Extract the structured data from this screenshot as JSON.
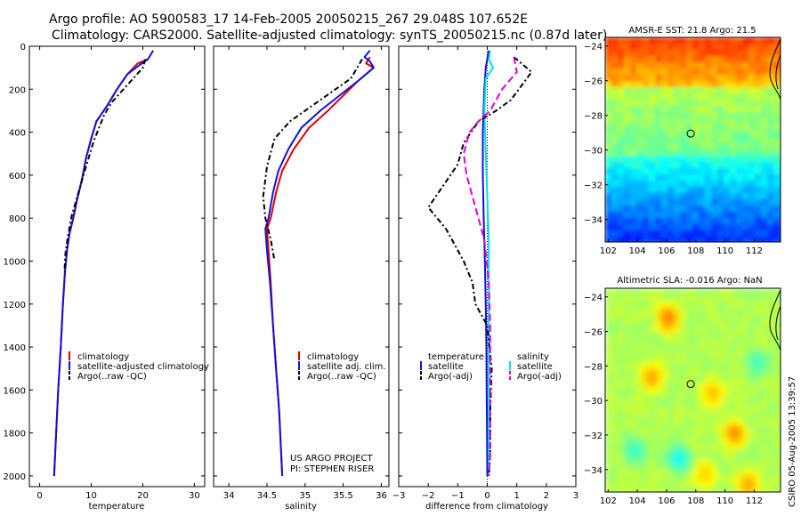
{
  "title_line1": "Argo profile: AO 5900583_17 14-Feb-2005 20050215_267 29.048S 107.652E",
  "title_line2": "Climatology: CARS2000. Satellite-adjusted climatology: synTS_20050215.nc (0.87d later)",
  "colors": {
    "climatology": "#e00000",
    "satellite": "#1010e0",
    "argo": "#000000",
    "salinity_satellite": "#00e0e0",
    "salinity_argo": "#e000e0"
  },
  "chart_data": [
    {
      "type": "line",
      "xlabel": "temperature",
      "ylim": [
        0,
        2050
      ],
      "y_reversed": true,
      "xlim": [
        -2,
        32
      ],
      "xticks": [
        0,
        10,
        20,
        30
      ],
      "yticks": [
        0,
        200,
        400,
        600,
        800,
        1000,
        1200,
        1400,
        1600,
        1800,
        2000
      ],
      "legend": [
        "climatology",
        "satellite-adjusted climatology",
        "Argo(..raw -QC)"
      ],
      "series": [
        {
          "name": "climatology",
          "color": "climatology",
          "dash": "",
          "points": [
            [
              21,
              60
            ],
            [
              19,
              80
            ],
            [
              17,
              130
            ],
            [
              15,
              200
            ],
            [
              13,
              280
            ],
            [
              11,
              350
            ],
            [
              10,
              430
            ],
            [
              9,
              520
            ],
            [
              8.2,
              620
            ],
            [
              7.2,
              720
            ],
            [
              6.5,
              800
            ],
            [
              5.8,
              870
            ],
            [
              5.3,
              950
            ],
            [
              4.9,
              1050
            ],
            [
              4.5,
              1200
            ],
            [
              4.1,
              1400
            ],
            [
              3.6,
              1600
            ],
            [
              3.2,
              1800
            ],
            [
              2.8,
              2000
            ]
          ]
        },
        {
          "name": "satellite-adjusted climatology",
          "color": "satellite",
          "dash": "",
          "points": [
            [
              22,
              20
            ],
            [
              21,
              60
            ],
            [
              19.5,
              85
            ],
            [
              17,
              130
            ],
            [
              15,
              200
            ],
            [
              13,
              280
            ],
            [
              11,
              350
            ],
            [
              10,
              430
            ],
            [
              9,
              520
            ],
            [
              8.2,
              620
            ],
            [
              7.2,
              720
            ],
            [
              6.5,
              800
            ],
            [
              5.8,
              870
            ],
            [
              5.3,
              950
            ],
            [
              4.9,
              1050
            ],
            [
              4.5,
              1200
            ],
            [
              4.1,
              1400
            ],
            [
              3.6,
              1600
            ],
            [
              3.2,
              1800
            ],
            [
              2.8,
              2000
            ]
          ]
        },
        {
          "name": "Argo(..raw -QC)",
          "color": "argo",
          "dash": "6 3 2 3",
          "points": [
            [
              20.5,
              60
            ],
            [
              20,
              100
            ],
            [
              17,
              180
            ],
            [
              14,
              260
            ],
            [
              12.5,
              320
            ],
            [
              11.5,
              380
            ],
            [
              10.5,
              440
            ],
            [
              9.5,
              520
            ],
            [
              8.5,
              600
            ],
            [
              7.3,
              700
            ],
            [
              6.2,
              790
            ],
            [
              5.5,
              880
            ],
            [
              5,
              960
            ],
            [
              4.8,
              1050
            ]
          ]
        }
      ]
    },
    {
      "type": "line",
      "xlabel": "salinity",
      "ylim": [
        0,
        2050
      ],
      "y_reversed": true,
      "xlim": [
        33.8,
        36.1
      ],
      "xticks": [
        34,
        34.5,
        35,
        35.5,
        36
      ],
      "yticks": [
        0,
        200,
        400,
        600,
        800,
        1000,
        1200,
        1400,
        1600,
        1800,
        2000
      ],
      "legend": [
        "climatology",
        "satellite adj. clim.",
        "Argo(..raw -QC)"
      ],
      "series": [
        {
          "name": "climatology",
          "color": "climatology",
          "dash": "",
          "points": [
            [
              35.85,
              50
            ],
            [
              35.8,
              80
            ],
            [
              35.9,
              100
            ],
            [
              35.7,
              160
            ],
            [
              35.5,
              230
            ],
            [
              35.3,
              300
            ],
            [
              35.05,
              380
            ],
            [
              34.85,
              480
            ],
            [
              34.7,
              580
            ],
            [
              34.62,
              680
            ],
            [
              34.55,
              800
            ],
            [
              34.5,
              850
            ],
            [
              34.52,
              950
            ],
            [
              34.55,
              1100
            ],
            [
              34.58,
              1300
            ],
            [
              34.62,
              1500
            ],
            [
              34.66,
              1700
            ],
            [
              34.68,
              1850
            ],
            [
              34.7,
              2000
            ]
          ]
        },
        {
          "name": "satellite adj. clim.",
          "color": "satellite",
          "dash": "",
          "points": [
            [
              35.85,
              20
            ],
            [
              35.78,
              50
            ],
            [
              35.85,
              70
            ],
            [
              35.9,
              100
            ],
            [
              35.7,
              160
            ],
            [
              35.45,
              230
            ],
            [
              35.2,
              300
            ],
            [
              34.95,
              380
            ],
            [
              34.78,
              480
            ],
            [
              34.65,
              580
            ],
            [
              34.58,
              680
            ],
            [
              34.52,
              800
            ],
            [
              34.48,
              850
            ],
            [
              34.5,
              950
            ],
            [
              34.54,
              1100
            ],
            [
              34.58,
              1300
            ],
            [
              34.62,
              1500
            ],
            [
              34.66,
              1700
            ],
            [
              34.68,
              1850
            ],
            [
              34.7,
              2000
            ]
          ]
        },
        {
          "name": "Argo(..raw -QC)",
          "color": "argo",
          "dash": "6 3 2 3",
          "points": [
            [
              35.75,
              60
            ],
            [
              35.6,
              150
            ],
            [
              35.2,
              250
            ],
            [
              34.8,
              350
            ],
            [
              34.6,
              430
            ],
            [
              34.5,
              560
            ],
            [
              34.45,
              700
            ],
            [
              34.48,
              800
            ],
            [
              34.55,
              900
            ],
            [
              34.6,
              1000
            ]
          ]
        }
      ]
    },
    {
      "type": "line",
      "xlabel": "difference from climatology",
      "ylim": [
        0,
        2050
      ],
      "y_reversed": true,
      "xlim": [
        -3,
        3
      ],
      "xticks": [
        -3,
        -2,
        -1,
        0,
        1,
        2,
        3
      ],
      "yticks": [
        0,
        200,
        400,
        600,
        800,
        1000,
        1200,
        1400,
        1600,
        1800,
        2000
      ],
      "legend_left_title": "temperature",
      "legend_left": [
        "satellite",
        "Argo(-adj)"
      ],
      "legend_right_title": "salinity",
      "legend_right": [
        "satellite",
        "Argo(-adj)"
      ],
      "series": [
        {
          "name": "temperature satellite",
          "color": "satellite",
          "dash": "",
          "points": [
            [
              0.05,
              20
            ],
            [
              -0.05,
              100
            ],
            [
              -0.1,
              200
            ],
            [
              -0.15,
              400
            ],
            [
              -0.15,
              600
            ],
            [
              -0.12,
              800
            ],
            [
              -0.08,
              1000
            ],
            [
              -0.05,
              1200
            ],
            [
              -0.03,
              1400
            ],
            [
              -0.02,
              1600
            ],
            [
              -0.01,
              1800
            ],
            [
              0,
              2000
            ]
          ]
        },
        {
          "name": "salinity satellite",
          "color": "salinity_satellite",
          "dash": "",
          "points": [
            [
              0.1,
              20
            ],
            [
              0.05,
              60
            ],
            [
              0.2,
              100
            ],
            [
              -0.05,
              150
            ],
            [
              -0.1,
              300
            ],
            [
              -0.05,
              500
            ],
            [
              0,
              700
            ],
            [
              0.05,
              900
            ],
            [
              0.05,
              1200
            ],
            [
              0.05,
              1500
            ],
            [
              0.05,
              1800
            ],
            [
              0.05,
              2000
            ]
          ]
        },
        {
          "name": "temperature Argo(-adj)",
          "color": "argo",
          "dash": "6 3 2 3",
          "points": [
            [
              0.9,
              50
            ],
            [
              1.5,
              120
            ],
            [
              0.8,
              250
            ],
            [
              0.3,
              300
            ],
            [
              -0.3,
              350
            ],
            [
              -0.8,
              450
            ],
            [
              -1.0,
              550
            ],
            [
              -1.5,
              650
            ],
            [
              -2.0,
              750
            ],
            [
              -1.4,
              850
            ],
            [
              -0.8,
              1000
            ],
            [
              -0.5,
              1100
            ],
            [
              -0.4,
              1200
            ],
            [
              0.0,
              1300
            ],
            [
              0.15,
              1500
            ],
            [
              0.1,
              1700
            ],
            [
              0.1,
              1900
            ],
            [
              0.05,
              2000
            ]
          ]
        },
        {
          "name": "salinity Argo(-adj)",
          "color": "salinity_argo",
          "dash": "8 4",
          "points": [
            [
              0.9,
              50
            ],
            [
              1.0,
              120
            ],
            [
              0.5,
              200
            ],
            [
              0.1,
              300
            ],
            [
              -0.3,
              350
            ],
            [
              -0.6,
              400
            ],
            [
              -0.8,
              500
            ],
            [
              -0.7,
              600
            ],
            [
              -0.5,
              700
            ],
            [
              -0.3,
              800
            ],
            [
              -0.1,
              900
            ],
            [
              0.05,
              1100
            ],
            [
              0.1,
              1300
            ],
            [
              0.1,
              1600
            ],
            [
              0.1,
              1900
            ],
            [
              0.05,
              2000
            ]
          ]
        }
      ]
    },
    {
      "type": "heatmap",
      "title": "AMSR-E SST: 21.8 Argo: 21.5",
      "xlim": [
        101.8,
        113.8
      ],
      "ylim": [
        -35.3,
        -23.5
      ],
      "xticks": [
        102,
        104,
        106,
        108,
        110,
        112
      ],
      "yticks": [
        -24,
        -26,
        -28,
        -30,
        -32,
        -34
      ],
      "marker": [
        107.652,
        -29.048
      ]
    },
    {
      "type": "heatmap",
      "title": "Altimetric SLA: -0.016 Argo: NaN",
      "xlim": [
        101.8,
        113.8
      ],
      "ylim": [
        -35.3,
        -23.5
      ],
      "xticks": [
        102,
        104,
        106,
        108,
        110,
        112
      ],
      "yticks": [
        -24,
        -26,
        -28,
        -30,
        -32,
        -34
      ],
      "marker": [
        107.652,
        -29.048
      ]
    }
  ],
  "watermark": "CSIRO 05-Aug-2005 13:39:57",
  "project_line1": "US ARGO PROJECT",
  "project_line2": "PI: STEPHEN RISER"
}
